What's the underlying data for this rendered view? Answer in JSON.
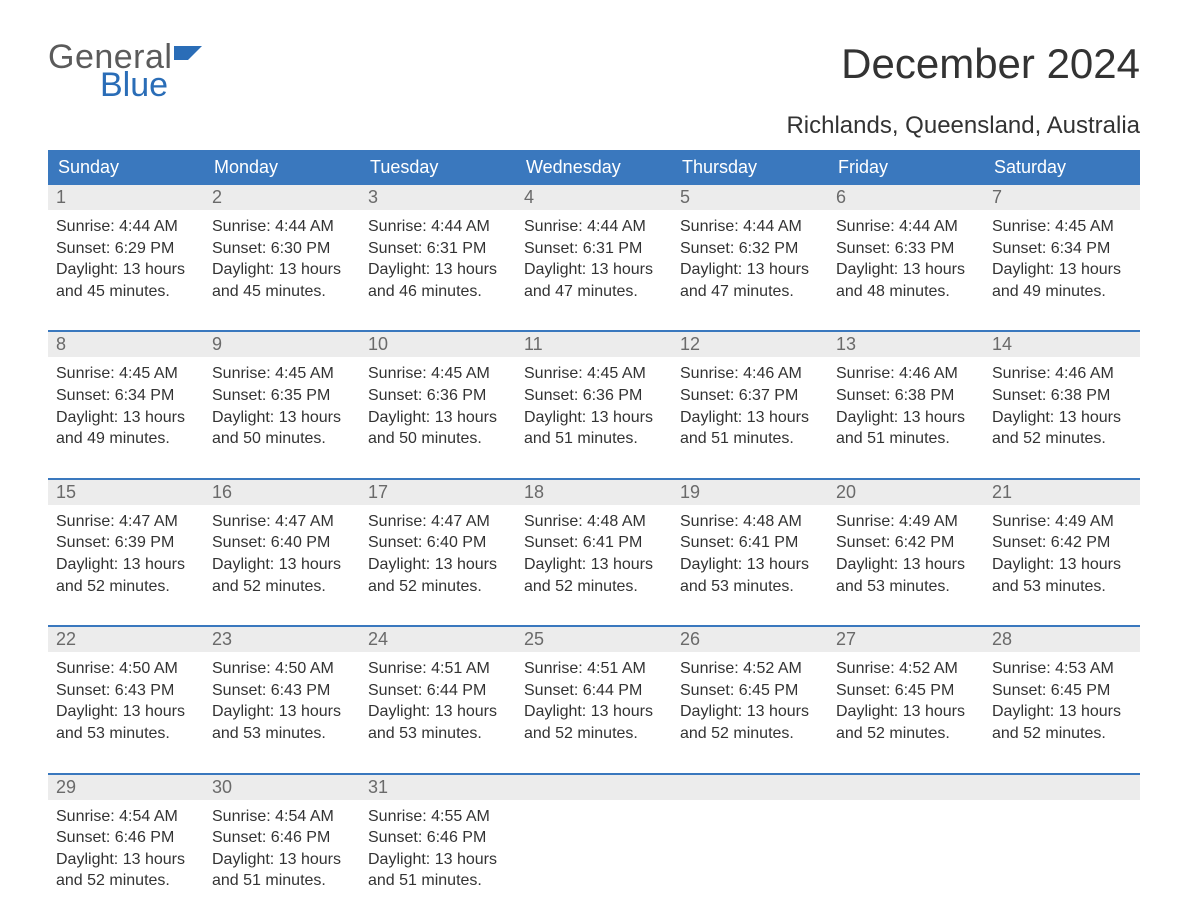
{
  "logo": {
    "word1": "General",
    "word2": "Blue",
    "word1_color": "#5b5b5b",
    "word2_color": "#2a6db7",
    "flag_color": "#2a6db7"
  },
  "title": "December 2024",
  "location": "Richlands, Queensland, Australia",
  "colors": {
    "header_bg": "#3a78be",
    "header_text": "#ffffff",
    "daynum_bg": "#ececec",
    "daynum_text": "#6a6a6a",
    "body_text": "#333333",
    "page_bg": "#ffffff",
    "week_border": "#3a78be"
  },
  "typography": {
    "title_fontsize": 42,
    "location_fontsize": 24,
    "header_fontsize": 18,
    "daynum_fontsize": 18,
    "detail_fontsize": 16,
    "logo_fontsize": 34
  },
  "day_headers": [
    "Sunday",
    "Monday",
    "Tuesday",
    "Wednesday",
    "Thursday",
    "Friday",
    "Saturday"
  ],
  "weeks": [
    [
      {
        "n": "1",
        "sunrise": "Sunrise: 4:44 AM",
        "sunset": "Sunset: 6:29 PM",
        "d1": "Daylight: 13 hours",
        "d2": "and 45 minutes."
      },
      {
        "n": "2",
        "sunrise": "Sunrise: 4:44 AM",
        "sunset": "Sunset: 6:30 PM",
        "d1": "Daylight: 13 hours",
        "d2": "and 45 minutes."
      },
      {
        "n": "3",
        "sunrise": "Sunrise: 4:44 AM",
        "sunset": "Sunset: 6:31 PM",
        "d1": "Daylight: 13 hours",
        "d2": "and 46 minutes."
      },
      {
        "n": "4",
        "sunrise": "Sunrise: 4:44 AM",
        "sunset": "Sunset: 6:31 PM",
        "d1": "Daylight: 13 hours",
        "d2": "and 47 minutes."
      },
      {
        "n": "5",
        "sunrise": "Sunrise: 4:44 AM",
        "sunset": "Sunset: 6:32 PM",
        "d1": "Daylight: 13 hours",
        "d2": "and 47 minutes."
      },
      {
        "n": "6",
        "sunrise": "Sunrise: 4:44 AM",
        "sunset": "Sunset: 6:33 PM",
        "d1": "Daylight: 13 hours",
        "d2": "and 48 minutes."
      },
      {
        "n": "7",
        "sunrise": "Sunrise: 4:45 AM",
        "sunset": "Sunset: 6:34 PM",
        "d1": "Daylight: 13 hours",
        "d2": "and 49 minutes."
      }
    ],
    [
      {
        "n": "8",
        "sunrise": "Sunrise: 4:45 AM",
        "sunset": "Sunset: 6:34 PM",
        "d1": "Daylight: 13 hours",
        "d2": "and 49 minutes."
      },
      {
        "n": "9",
        "sunrise": "Sunrise: 4:45 AM",
        "sunset": "Sunset: 6:35 PM",
        "d1": "Daylight: 13 hours",
        "d2": "and 50 minutes."
      },
      {
        "n": "10",
        "sunrise": "Sunrise: 4:45 AM",
        "sunset": "Sunset: 6:36 PM",
        "d1": "Daylight: 13 hours",
        "d2": "and 50 minutes."
      },
      {
        "n": "11",
        "sunrise": "Sunrise: 4:45 AM",
        "sunset": "Sunset: 6:36 PM",
        "d1": "Daylight: 13 hours",
        "d2": "and 51 minutes."
      },
      {
        "n": "12",
        "sunrise": "Sunrise: 4:46 AM",
        "sunset": "Sunset: 6:37 PM",
        "d1": "Daylight: 13 hours",
        "d2": "and 51 minutes."
      },
      {
        "n": "13",
        "sunrise": "Sunrise: 4:46 AM",
        "sunset": "Sunset: 6:38 PM",
        "d1": "Daylight: 13 hours",
        "d2": "and 51 minutes."
      },
      {
        "n": "14",
        "sunrise": "Sunrise: 4:46 AM",
        "sunset": "Sunset: 6:38 PM",
        "d1": "Daylight: 13 hours",
        "d2": "and 52 minutes."
      }
    ],
    [
      {
        "n": "15",
        "sunrise": "Sunrise: 4:47 AM",
        "sunset": "Sunset: 6:39 PM",
        "d1": "Daylight: 13 hours",
        "d2": "and 52 minutes."
      },
      {
        "n": "16",
        "sunrise": "Sunrise: 4:47 AM",
        "sunset": "Sunset: 6:40 PM",
        "d1": "Daylight: 13 hours",
        "d2": "and 52 minutes."
      },
      {
        "n": "17",
        "sunrise": "Sunrise: 4:47 AM",
        "sunset": "Sunset: 6:40 PM",
        "d1": "Daylight: 13 hours",
        "d2": "and 52 minutes."
      },
      {
        "n": "18",
        "sunrise": "Sunrise: 4:48 AM",
        "sunset": "Sunset: 6:41 PM",
        "d1": "Daylight: 13 hours",
        "d2": "and 52 minutes."
      },
      {
        "n": "19",
        "sunrise": "Sunrise: 4:48 AM",
        "sunset": "Sunset: 6:41 PM",
        "d1": "Daylight: 13 hours",
        "d2": "and 53 minutes."
      },
      {
        "n": "20",
        "sunrise": "Sunrise: 4:49 AM",
        "sunset": "Sunset: 6:42 PM",
        "d1": "Daylight: 13 hours",
        "d2": "and 53 minutes."
      },
      {
        "n": "21",
        "sunrise": "Sunrise: 4:49 AM",
        "sunset": "Sunset: 6:42 PM",
        "d1": "Daylight: 13 hours",
        "d2": "and 53 minutes."
      }
    ],
    [
      {
        "n": "22",
        "sunrise": "Sunrise: 4:50 AM",
        "sunset": "Sunset: 6:43 PM",
        "d1": "Daylight: 13 hours",
        "d2": "and 53 minutes."
      },
      {
        "n": "23",
        "sunrise": "Sunrise: 4:50 AM",
        "sunset": "Sunset: 6:43 PM",
        "d1": "Daylight: 13 hours",
        "d2": "and 53 minutes."
      },
      {
        "n": "24",
        "sunrise": "Sunrise: 4:51 AM",
        "sunset": "Sunset: 6:44 PM",
        "d1": "Daylight: 13 hours",
        "d2": "and 53 minutes."
      },
      {
        "n": "25",
        "sunrise": "Sunrise: 4:51 AM",
        "sunset": "Sunset: 6:44 PM",
        "d1": "Daylight: 13 hours",
        "d2": "and 52 minutes."
      },
      {
        "n": "26",
        "sunrise": "Sunrise: 4:52 AM",
        "sunset": "Sunset: 6:45 PM",
        "d1": "Daylight: 13 hours",
        "d2": "and 52 minutes."
      },
      {
        "n": "27",
        "sunrise": "Sunrise: 4:52 AM",
        "sunset": "Sunset: 6:45 PM",
        "d1": "Daylight: 13 hours",
        "d2": "and 52 minutes."
      },
      {
        "n": "28",
        "sunrise": "Sunrise: 4:53 AM",
        "sunset": "Sunset: 6:45 PM",
        "d1": "Daylight: 13 hours",
        "d2": "and 52 minutes."
      }
    ],
    [
      {
        "n": "29",
        "sunrise": "Sunrise: 4:54 AM",
        "sunset": "Sunset: 6:46 PM",
        "d1": "Daylight: 13 hours",
        "d2": "and 52 minutes."
      },
      {
        "n": "30",
        "sunrise": "Sunrise: 4:54 AM",
        "sunset": "Sunset: 6:46 PM",
        "d1": "Daylight: 13 hours",
        "d2": "and 51 minutes."
      },
      {
        "n": "31",
        "sunrise": "Sunrise: 4:55 AM",
        "sunset": "Sunset: 6:46 PM",
        "d1": "Daylight: 13 hours",
        "d2": "and 51 minutes."
      },
      {
        "n": "",
        "sunrise": "",
        "sunset": "",
        "d1": "",
        "d2": ""
      },
      {
        "n": "",
        "sunrise": "",
        "sunset": "",
        "d1": "",
        "d2": ""
      },
      {
        "n": "",
        "sunrise": "",
        "sunset": "",
        "d1": "",
        "d2": ""
      },
      {
        "n": "",
        "sunrise": "",
        "sunset": "",
        "d1": "",
        "d2": ""
      }
    ]
  ]
}
